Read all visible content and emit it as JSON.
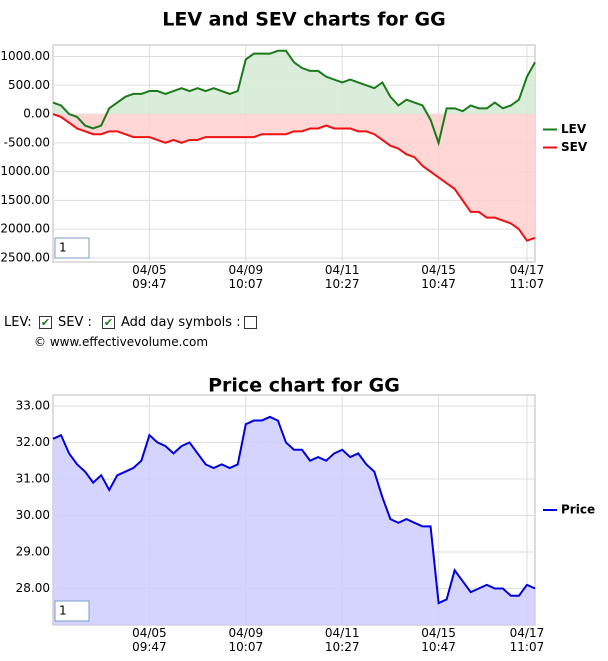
{
  "chart_data": [
    {
      "type": "area",
      "title": "LEV and SEV charts for GG",
      "range_box": "1",
      "categories": [
        null,
        null,
        null,
        null,
        null,
        null,
        null,
        null,
        null,
        null,
        null,
        null,
        "04/05\n09:47",
        null,
        null,
        null,
        null,
        null,
        null,
        null,
        null,
        null,
        null,
        null,
        "04/09\n10:07",
        null,
        null,
        null,
        null,
        null,
        null,
        null,
        null,
        null,
        null,
        null,
        "04/11\n10:27",
        null,
        null,
        null,
        null,
        null,
        null,
        null,
        null,
        null,
        null,
        null,
        "04/15\n10:47",
        null,
        null,
        null,
        null,
        null,
        null,
        null,
        null,
        null,
        null,
        "04/17\n11:07",
        null
      ],
      "series": [
        {
          "name": "LEV",
          "color": "#1a7a1a",
          "fill": "#d3ead3",
          "values": [
            200,
            150,
            0,
            -50,
            -200,
            -250,
            -200,
            100,
            200,
            300,
            350,
            350,
            400,
            400,
            350,
            400,
            450,
            400,
            450,
            400,
            450,
            400,
            350,
            400,
            950,
            1050,
            1050,
            1050,
            1100,
            1100,
            900,
            800,
            750,
            750,
            650,
            600,
            550,
            600,
            550,
            500,
            450,
            550,
            300,
            150,
            250,
            200,
            150,
            -100,
            -500,
            100,
            100,
            50,
            150,
            100,
            100,
            200,
            100,
            150,
            250,
            650,
            900
          ]
        },
        {
          "name": "SEV",
          "color": "#ee1111",
          "fill": "#ffd0d0",
          "values": [
            0,
            -50,
            -150,
            -250,
            -300,
            -350,
            -350,
            -300,
            -300,
            -350,
            -400,
            -400,
            -400,
            -450,
            -500,
            -450,
            -500,
            -450,
            -450,
            -400,
            -400,
            -400,
            -400,
            -400,
            -400,
            -400,
            -350,
            -350,
            -350,
            -350,
            -300,
            -300,
            -250,
            -250,
            -200,
            -250,
            -250,
            -250,
            -300,
            -300,
            -350,
            -450,
            -550,
            -600,
            -700,
            -750,
            -900,
            -1000,
            -1100,
            -1200,
            -1300,
            -1500,
            -1700,
            -1700,
            -1800,
            -1800,
            -1850,
            -1900,
            -2000,
            -2200,
            -2150
          ]
        }
      ],
      "ylim": [
        -2570,
        1200
      ],
      "yticks": [
        {
          "value": -2500,
          "label": "-2500.00"
        },
        {
          "value": -2000,
          "label": "-2000.00"
        },
        {
          "value": -1500,
          "label": "-1500.00"
        },
        {
          "value": -1000,
          "label": "-1000.00"
        },
        {
          "value": -500,
          "label": "-500.00"
        },
        {
          "value": 0,
          "label": "0.00"
        },
        {
          "value": 500,
          "label": "500.00"
        },
        {
          "value": 1000,
          "label": "1000.00"
        }
      ],
      "grid": true,
      "legend": "right"
    },
    {
      "type": "area",
      "title": "Price chart for GG",
      "range_box": "1",
      "categories": [
        null,
        null,
        null,
        null,
        null,
        null,
        null,
        null,
        null,
        null,
        null,
        null,
        "04/05\n09:47",
        null,
        null,
        null,
        null,
        null,
        null,
        null,
        null,
        null,
        null,
        null,
        "04/09\n10:07",
        null,
        null,
        null,
        null,
        null,
        null,
        null,
        null,
        null,
        null,
        null,
        "04/11\n10:27",
        null,
        null,
        null,
        null,
        null,
        null,
        null,
        null,
        null,
        null,
        null,
        "04/15\n10:47",
        null,
        null,
        null,
        null,
        null,
        null,
        null,
        null,
        null,
        null,
        "04/17\n11:07",
        null
      ],
      "series": [
        {
          "name": "Price",
          "color": "#0000dd",
          "fill": "#ccccff",
          "values": [
            32.1,
            32.2,
            31.7,
            31.4,
            31.2,
            30.9,
            31.1,
            30.7,
            31.1,
            31.2,
            31.3,
            31.5,
            32.2,
            32.0,
            31.9,
            31.7,
            31.9,
            32.0,
            31.7,
            31.4,
            31.3,
            31.4,
            31.3,
            31.4,
            32.5,
            32.6,
            32.6,
            32.7,
            32.6,
            32.0,
            31.8,
            31.8,
            31.5,
            31.6,
            31.5,
            31.7,
            31.8,
            31.6,
            31.7,
            31.4,
            31.2,
            30.5,
            29.9,
            29.8,
            29.9,
            29.8,
            29.7,
            29.7,
            27.6,
            27.7,
            28.5,
            28.2,
            27.9,
            28.0,
            28.1,
            28.0,
            28.0,
            27.8,
            27.8,
            28.1,
            28.0
          ]
        }
      ],
      "ylim": [
        27.0,
        33.3
      ],
      "yticks": [
        {
          "value": 28,
          "label": "28.00"
        },
        {
          "value": 29,
          "label": "29.00"
        },
        {
          "value": 30,
          "label": "30.00"
        },
        {
          "value": 31,
          "label": "31.00"
        },
        {
          "value": 32,
          "label": "32.00"
        },
        {
          "value": 33,
          "label": "33.00"
        }
      ],
      "grid": true,
      "legend": "right"
    }
  ],
  "controls": {
    "lev_label": "LEV:",
    "sev_label": "SEV :",
    "day_label": "Add day symbols :",
    "lev_checked": true,
    "sev_checked": true,
    "day_checked": false
  },
  "copyright": "© www.effectivevolume.com"
}
